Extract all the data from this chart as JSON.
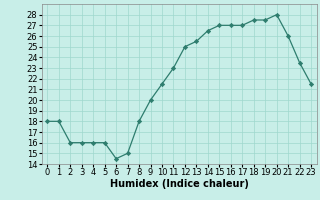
{
  "x": [
    0,
    1,
    2,
    3,
    4,
    5,
    6,
    7,
    8,
    9,
    10,
    11,
    12,
    13,
    14,
    15,
    16,
    17,
    18,
    19,
    20,
    21,
    22,
    23
  ],
  "y": [
    18,
    18,
    16,
    16,
    16,
    16,
    14.5,
    15,
    18,
    20,
    21.5,
    23,
    25,
    25.5,
    26.5,
    27,
    27,
    27,
    27.5,
    27.5,
    28,
    26,
    23.5,
    21.5
  ],
  "line_color": "#2e7d6e",
  "marker_color": "#2e7d6e",
  "bg_color": "#c8eee8",
  "grid_color": "#9fd8ce",
  "xlabel": "Humidex (Indice chaleur)",
  "ylim": [
    14,
    29
  ],
  "xlim": [
    -0.5,
    23.5
  ],
  "yticks": [
    14,
    15,
    16,
    17,
    18,
    19,
    20,
    21,
    22,
    23,
    24,
    25,
    26,
    27,
    28
  ],
  "xticks": [
    0,
    1,
    2,
    3,
    4,
    5,
    6,
    7,
    8,
    9,
    10,
    11,
    12,
    13,
    14,
    15,
    16,
    17,
    18,
    19,
    20,
    21,
    22,
    23
  ],
  "xlabel_fontsize": 7,
  "tick_fontsize": 6,
  "linewidth": 0.9,
  "markersize": 2.2
}
